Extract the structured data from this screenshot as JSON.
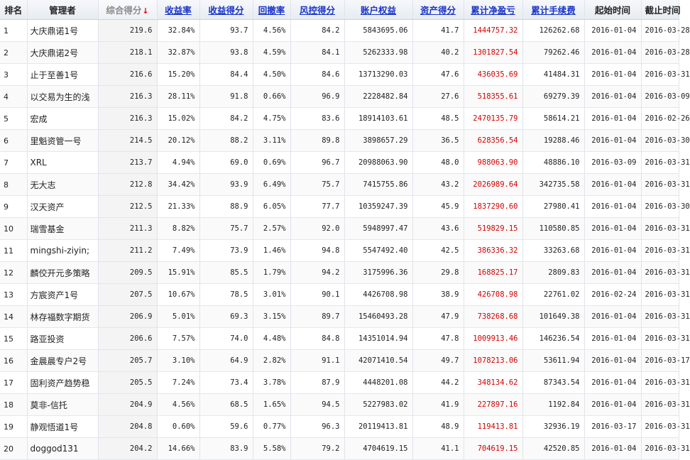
{
  "header": {
    "rank": "排名",
    "manager": "管理者",
    "composite_score": "综合得分",
    "sort_arrow": "↓",
    "return_rate": "收益率",
    "return_score": "收益得分",
    "drawdown": "回撤率",
    "risk_score": "风控得分",
    "equity": "账户权益",
    "asset_score": "资产得分",
    "cum_pnl": "累计净盈亏",
    "cum_fee": "累计手续费",
    "start": "起始时间",
    "end": "截止时间"
  },
  "colors": {
    "link": "#1a34c8",
    "profit": "#d40000",
    "sort_arrow": "#e60000"
  },
  "rows": [
    {
      "rank": "1",
      "manager": "大庆鼎诺1号",
      "composite": "219.6",
      "return_rate": "32.84%",
      "return_score": "93.7",
      "drawdown": "4.56%",
      "risk_score": "84.2",
      "equity": "5843695.06",
      "asset_score": "41.7",
      "cum_pnl": "1444757.32",
      "cum_fee": "126262.68",
      "start": "2016-01-04",
      "end": "2016-03-28"
    },
    {
      "rank": "2",
      "manager": "大庆鼎诺2号",
      "composite": "218.1",
      "return_rate": "32.87%",
      "return_score": "93.8",
      "drawdown": "4.59%",
      "risk_score": "84.1",
      "equity": "5262333.98",
      "asset_score": "40.2",
      "cum_pnl": "1301827.54",
      "cum_fee": "79262.46",
      "start": "2016-01-04",
      "end": "2016-03-28"
    },
    {
      "rank": "3",
      "manager": "止于至善1号",
      "composite": "216.6",
      "return_rate": "15.20%",
      "return_score": "84.4",
      "drawdown": "4.50%",
      "risk_score": "84.6",
      "equity": "13713290.03",
      "asset_score": "47.6",
      "cum_pnl": "436035.69",
      "cum_fee": "41484.31",
      "start": "2016-01-04",
      "end": "2016-03-31"
    },
    {
      "rank": "4",
      "manager": "以交易为生的浅",
      "composite": "216.3",
      "return_rate": "28.11%",
      "return_score": "91.8",
      "drawdown": "0.66%",
      "risk_score": "96.9",
      "equity": "2228482.84",
      "asset_score": "27.6",
      "cum_pnl": "518355.61",
      "cum_fee": "69279.39",
      "start": "2016-01-04",
      "end": "2016-03-09"
    },
    {
      "rank": "5",
      "manager": "宏成",
      "composite": "216.3",
      "return_rate": "15.02%",
      "return_score": "84.2",
      "drawdown": "4.75%",
      "risk_score": "83.6",
      "equity": "18914103.61",
      "asset_score": "48.5",
      "cum_pnl": "2470135.79",
      "cum_fee": "58614.21",
      "start": "2016-01-04",
      "end": "2016-02-26"
    },
    {
      "rank": "6",
      "manager": "里魁资管一号",
      "composite": "214.5",
      "return_rate": "20.12%",
      "return_score": "88.2",
      "drawdown": "3.11%",
      "risk_score": "89.8",
      "equity": "3898657.29",
      "asset_score": "36.5",
      "cum_pnl": "628356.54",
      "cum_fee": "19288.46",
      "start": "2016-01-04",
      "end": "2016-03-30"
    },
    {
      "rank": "7",
      "manager": "XRL",
      "composite": "213.7",
      "return_rate": "4.94%",
      "return_score": "69.0",
      "drawdown": "0.69%",
      "risk_score": "96.7",
      "equity": "20988063.90",
      "asset_score": "48.0",
      "cum_pnl": "988063.90",
      "cum_fee": "48886.10",
      "start": "2016-03-09",
      "end": "2016-03-31"
    },
    {
      "rank": "8",
      "manager": "无大志",
      "composite": "212.8",
      "return_rate": "34.42%",
      "return_score": "93.9",
      "drawdown": "6.49%",
      "risk_score": "75.7",
      "equity": "7415755.86",
      "asset_score": "43.2",
      "cum_pnl": "2026989.64",
      "cum_fee": "342735.58",
      "start": "2016-01-04",
      "end": "2016-03-31"
    },
    {
      "rank": "9",
      "manager": "汉天资产",
      "composite": "212.5",
      "return_rate": "21.33%",
      "return_score": "88.9",
      "drawdown": "6.05%",
      "risk_score": "77.7",
      "equity": "10359247.39",
      "asset_score": "45.9",
      "cum_pnl": "1837290.60",
      "cum_fee": "27980.41",
      "start": "2016-01-04",
      "end": "2016-03-30"
    },
    {
      "rank": "10",
      "manager": "瑞雪基金",
      "composite": "211.3",
      "return_rate": "8.82%",
      "return_score": "75.7",
      "drawdown": "2.57%",
      "risk_score": "92.0",
      "equity": "5948997.47",
      "asset_score": "43.6",
      "cum_pnl": "519829.15",
      "cum_fee": "110580.85",
      "start": "2016-01-04",
      "end": "2016-03-31"
    },
    {
      "rank": "11",
      "manager": "mingshi-ziyin;",
      "composite": "211.2",
      "return_rate": "7.49%",
      "return_score": "73.9",
      "drawdown": "1.46%",
      "risk_score": "94.8",
      "equity": "5547492.40",
      "asset_score": "42.5",
      "cum_pnl": "386336.32",
      "cum_fee": "33263.68",
      "start": "2016-01-04",
      "end": "2016-03-31"
    },
    {
      "rank": "12",
      "manager": "麟佼开元多策略",
      "composite": "209.5",
      "return_rate": "15.91%",
      "return_score": "85.5",
      "drawdown": "1.79%",
      "risk_score": "94.2",
      "equity": "3175996.36",
      "asset_score": "29.8",
      "cum_pnl": "168825.17",
      "cum_fee": "2809.83",
      "start": "2016-01-04",
      "end": "2016-03-31"
    },
    {
      "rank": "13",
      "manager": "方宸资产1号",
      "composite": "207.5",
      "return_rate": "10.67%",
      "return_score": "78.5",
      "drawdown": "3.01%",
      "risk_score": "90.1",
      "equity": "4426708.98",
      "asset_score": "38.9",
      "cum_pnl": "426708.98",
      "cum_fee": "22761.02",
      "start": "2016-02-24",
      "end": "2016-03-31"
    },
    {
      "rank": "14",
      "manager": "林存福数字期货",
      "composite": "206.9",
      "return_rate": "5.01%",
      "return_score": "69.3",
      "drawdown": "3.15%",
      "risk_score": "89.7",
      "equity": "15460493.28",
      "asset_score": "47.9",
      "cum_pnl": "738268.68",
      "cum_fee": "101649.38",
      "start": "2016-01-04",
      "end": "2016-03-31"
    },
    {
      "rank": "15",
      "manager": "路亚投资",
      "composite": "206.6",
      "return_rate": "7.57%",
      "return_score": "74.0",
      "drawdown": "4.48%",
      "risk_score": "84.8",
      "equity": "14351014.94",
      "asset_score": "47.8",
      "cum_pnl": "1009913.46",
      "cum_fee": "146236.54",
      "start": "2016-01-04",
      "end": "2016-03-31"
    },
    {
      "rank": "16",
      "manager": "金晨晨专户2号",
      "composite": "205.7",
      "return_rate": "3.10%",
      "return_score": "64.9",
      "drawdown": "2.82%",
      "risk_score": "91.1",
      "equity": "42071410.54",
      "asset_score": "49.7",
      "cum_pnl": "1078213.06",
      "cum_fee": "53611.94",
      "start": "2016-01-04",
      "end": "2016-03-17"
    },
    {
      "rank": "17",
      "manager": "固利资产趋势稳",
      "composite": "205.5",
      "return_rate": "7.24%",
      "return_score": "73.4",
      "drawdown": "3.78%",
      "risk_score": "87.9",
      "equity": "4448201.08",
      "asset_score": "44.2",
      "cum_pnl": "348134.62",
      "cum_fee": "87343.54",
      "start": "2016-01-04",
      "end": "2016-03-31"
    },
    {
      "rank": "18",
      "manager": "莫非-信托",
      "composite": "204.9",
      "return_rate": "4.56%",
      "return_score": "68.5",
      "drawdown": "1.65%",
      "risk_score": "94.5",
      "equity": "5227983.02",
      "asset_score": "41.9",
      "cum_pnl": "227897.16",
      "cum_fee": "1192.84",
      "start": "2016-01-04",
      "end": "2016-03-31"
    },
    {
      "rank": "19",
      "manager": "静观悟道1号",
      "composite": "204.8",
      "return_rate": "0.60%",
      "return_score": "59.6",
      "drawdown": "0.77%",
      "risk_score": "96.3",
      "equity": "20119413.81",
      "asset_score": "48.9",
      "cum_pnl": "119413.81",
      "cum_fee": "32936.19",
      "start": "2016-03-17",
      "end": "2016-03-31"
    },
    {
      "rank": "20",
      "manager": "doggod131",
      "composite": "204.2",
      "return_rate": "14.66%",
      "return_score": "83.9",
      "drawdown": "5.58%",
      "risk_score": "79.2",
      "equity": "4704619.15",
      "asset_score": "41.1",
      "cum_pnl": "704619.15",
      "cum_fee": "42520.85",
      "start": "2016-01-04",
      "end": "2016-03-31"
    }
  ]
}
